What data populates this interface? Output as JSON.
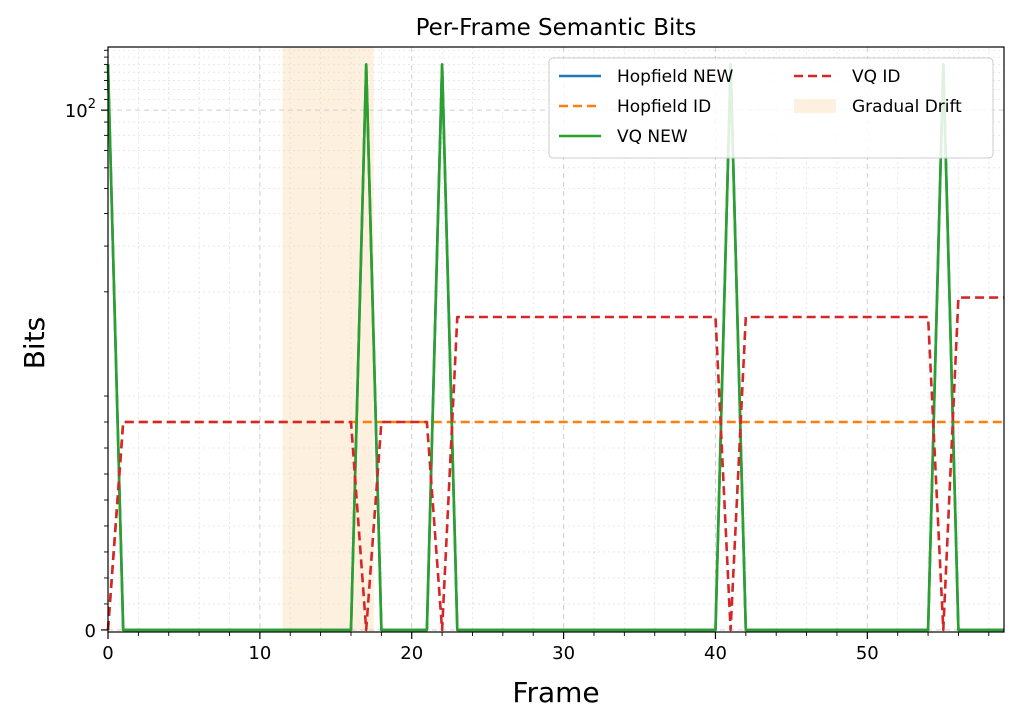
{
  "chart_data": {
    "type": "line",
    "title": "Per-Frame Semantic Bits",
    "xlabel": "Frame",
    "ylabel": "Bits",
    "xlim": [
      0,
      59
    ],
    "yscale": "symlog",
    "ylim": [
      -0.08,
      175
    ],
    "x_ticks": [
      0,
      10,
      20,
      30,
      40,
      50
    ],
    "x_tick_labels": [
      "0",
      "10",
      "20",
      "30",
      "40",
      "50"
    ],
    "y_ticks": [
      0,
      100
    ],
    "y_tick_labels": [
      "0",
      "10²"
    ],
    "grid": true,
    "legend_position": "upper right",
    "shaded_region": {
      "name": "Gradual Drift",
      "x_start": 11.5,
      "x_end": 17.5,
      "color": "#fdf0de"
    },
    "series": [
      {
        "name": "Hopfield NEW",
        "color": "#1f77b4",
        "style": "solid",
        "x": [
          0,
          1,
          16,
          17,
          18,
          21,
          22,
          23,
          40,
          41,
          42,
          54,
          55,
          56,
          59
        ],
        "y": [
          150,
          0,
          0,
          150,
          0,
          0,
          150,
          0,
          0,
          150,
          0,
          0,
          150,
          0,
          0
        ]
      },
      {
        "name": "Hopfield ID",
        "color": "#ff7f0e",
        "style": "dashed",
        "x": [
          0,
          1,
          59
        ],
        "y": [
          0,
          8,
          8
        ]
      },
      {
        "name": "VQ NEW",
        "color": "#2ca02c",
        "style": "solid",
        "x": [
          0,
          1,
          16,
          17,
          18,
          21,
          22,
          23,
          40,
          41,
          42,
          54,
          55,
          56,
          59
        ],
        "y": [
          150,
          0,
          0,
          150,
          0,
          0,
          150,
          0,
          0,
          150,
          0,
          0,
          150,
          0,
          0
        ]
      },
      {
        "name": "VQ ID",
        "color": "#d62728",
        "style": "dashed",
        "x": [
          0,
          1,
          16,
          17,
          18,
          21,
          22,
          23,
          40,
          41,
          42,
          54,
          55,
          56,
          59
        ],
        "y": [
          0,
          8,
          8,
          0,
          8,
          8,
          0,
          16,
          16,
          0,
          16,
          16,
          0,
          19,
          19
        ]
      }
    ]
  }
}
